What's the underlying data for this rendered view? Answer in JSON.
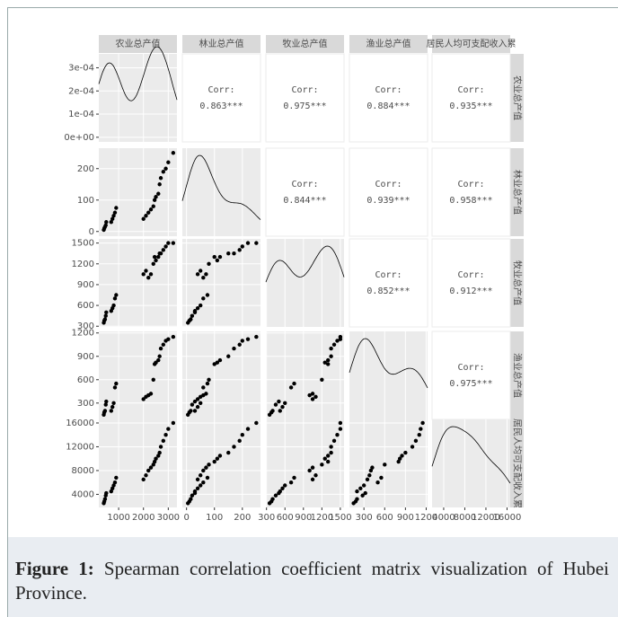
{
  "chart_data": {
    "type": "pairs",
    "variables": [
      "农业总产值",
      "林业总产值",
      "牧业总产值",
      "渔业总产值",
      "居民人均可支配收入累"
    ],
    "observations": [
      [
        400,
        420,
        450,
        480,
        500,
        700,
        750,
        800,
        850,
        900,
        2000,
        2100,
        2200,
        2300,
        2400,
        2450,
        2500,
        2600,
        2650,
        2700,
        2800,
        2900,
        3000,
        3200
      ],
      [
        5,
        10,
        15,
        20,
        30,
        30,
        40,
        50,
        60,
        75,
        40,
        50,
        60,
        70,
        80,
        100,
        110,
        120,
        150,
        170,
        190,
        200,
        220,
        250
      ],
      [
        350,
        380,
        400,
        450,
        500,
        520,
        560,
        600,
        700,
        750,
        1050,
        1100,
        1000,
        1050,
        1200,
        1300,
        1250,
        1300,
        1350,
        1350,
        1400,
        1450,
        1500,
        1500
      ],
      [
        150,
        180,
        200,
        280,
        320,
        200,
        250,
        300,
        500,
        550,
        350,
        380,
        400,
        420,
        600,
        800,
        820,
        850,
        900,
        1000,
        1050,
        1100,
        1120,
        1150
      ],
      [
        2500,
        2800,
        3200,
        3800,
        4200,
        4500,
        5000,
        5500,
        6000,
        6800,
        6500,
        7200,
        8000,
        8500,
        9000,
        9500,
        10000,
        10500,
        11000,
        12000,
        13000,
        14000,
        15000,
        16000
      ]
    ],
    "lims": [
      [
        200,
        3350
      ],
      [
        -15,
        265
      ],
      [
        290,
        1560
      ],
      [
        90,
        1220
      ],
      [
        1800,
        16600
      ]
    ],
    "ticks": [
      [
        1000,
        2000,
        3000
      ],
      [
        0,
        100,
        200
      ],
      [
        300,
        600,
        900,
        1200,
        1500
      ],
      [
        300,
        600,
        900,
        1200
      ],
      [
        4000,
        8000,
        12000,
        16000
      ]
    ],
    "density_ylim": [
      -2e-05,
      0.00036
    ],
    "density_yticks": [
      {
        "value": 0,
        "label": "0e+00"
      },
      {
        "value": 0.0001,
        "label": "1e-04"
      },
      {
        "value": 0.0002,
        "label": "2e-04"
      },
      {
        "value": 0.0003,
        "label": "3e-04"
      }
    ],
    "corr_label": "Corr:",
    "correlations": [
      [
        "0.863***",
        "0.975***",
        "0.884***",
        "0.935***"
      ],
      [
        "0.844***",
        "0.939***",
        "0.958***"
      ],
      [
        "0.852***",
        "0.912***"
      ],
      [
        "0.975***"
      ]
    ],
    "point_color": "#000000"
  },
  "caption": {
    "label": "Figure 1:",
    "text": "Spearman correlation coefficient matrix visualization of Hubei Province."
  }
}
